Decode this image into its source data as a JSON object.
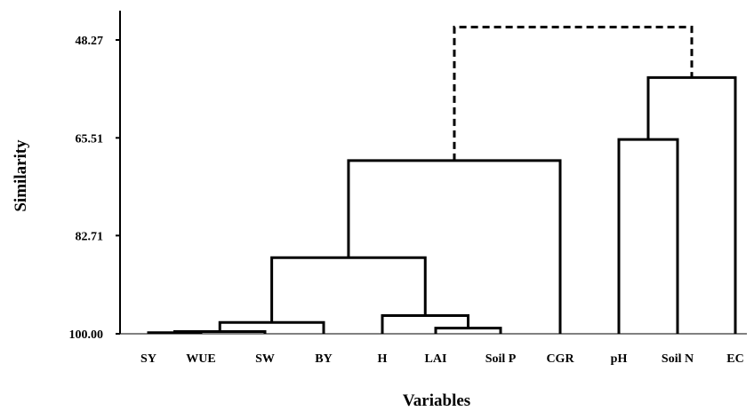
{
  "chart_data": {
    "type": "dendrogram",
    "xlabel": "Variables",
    "ylabel": "Similarity",
    "ylim": [
      100.0,
      48.27
    ],
    "y_ticks": [
      "48.27",
      "65.51",
      "82.71",
      "100.00"
    ],
    "leaves": [
      "SY",
      "WUE",
      "SW",
      "BY",
      "H",
      "LAI",
      "Soil P",
      "CGR",
      "pH",
      "Soil N",
      "EC"
    ],
    "merges": [
      {
        "left": "SY",
        "right": "WUE",
        "similarity": 99.8
      },
      {
        "left": "SY+WUE",
        "right": "SW",
        "similarity": 99.6
      },
      {
        "left": "SY+WUE+SW",
        "right": "BY",
        "similarity": 98.0
      },
      {
        "left": "LAI",
        "right": "Soil P",
        "similarity": 99.0
      },
      {
        "left": "H",
        "right": "LAI+Soil P",
        "similarity": 96.8
      },
      {
        "left": "SY..BY",
        "right": "H..Soil P",
        "similarity": 86.6
      },
      {
        "left": "SY..Soil P",
        "right": "CGR",
        "similarity": 69.5
      },
      {
        "left": "pH",
        "right": "Soil N",
        "similarity": 65.8
      },
      {
        "left": "pH+Soil N",
        "right": "EC",
        "similarity": 54.9
      },
      {
        "left": "SY..CGR",
        "right": "pH..EC",
        "similarity": 46.0,
        "style": "dashed"
      }
    ],
    "grid": false,
    "legend": "none"
  }
}
